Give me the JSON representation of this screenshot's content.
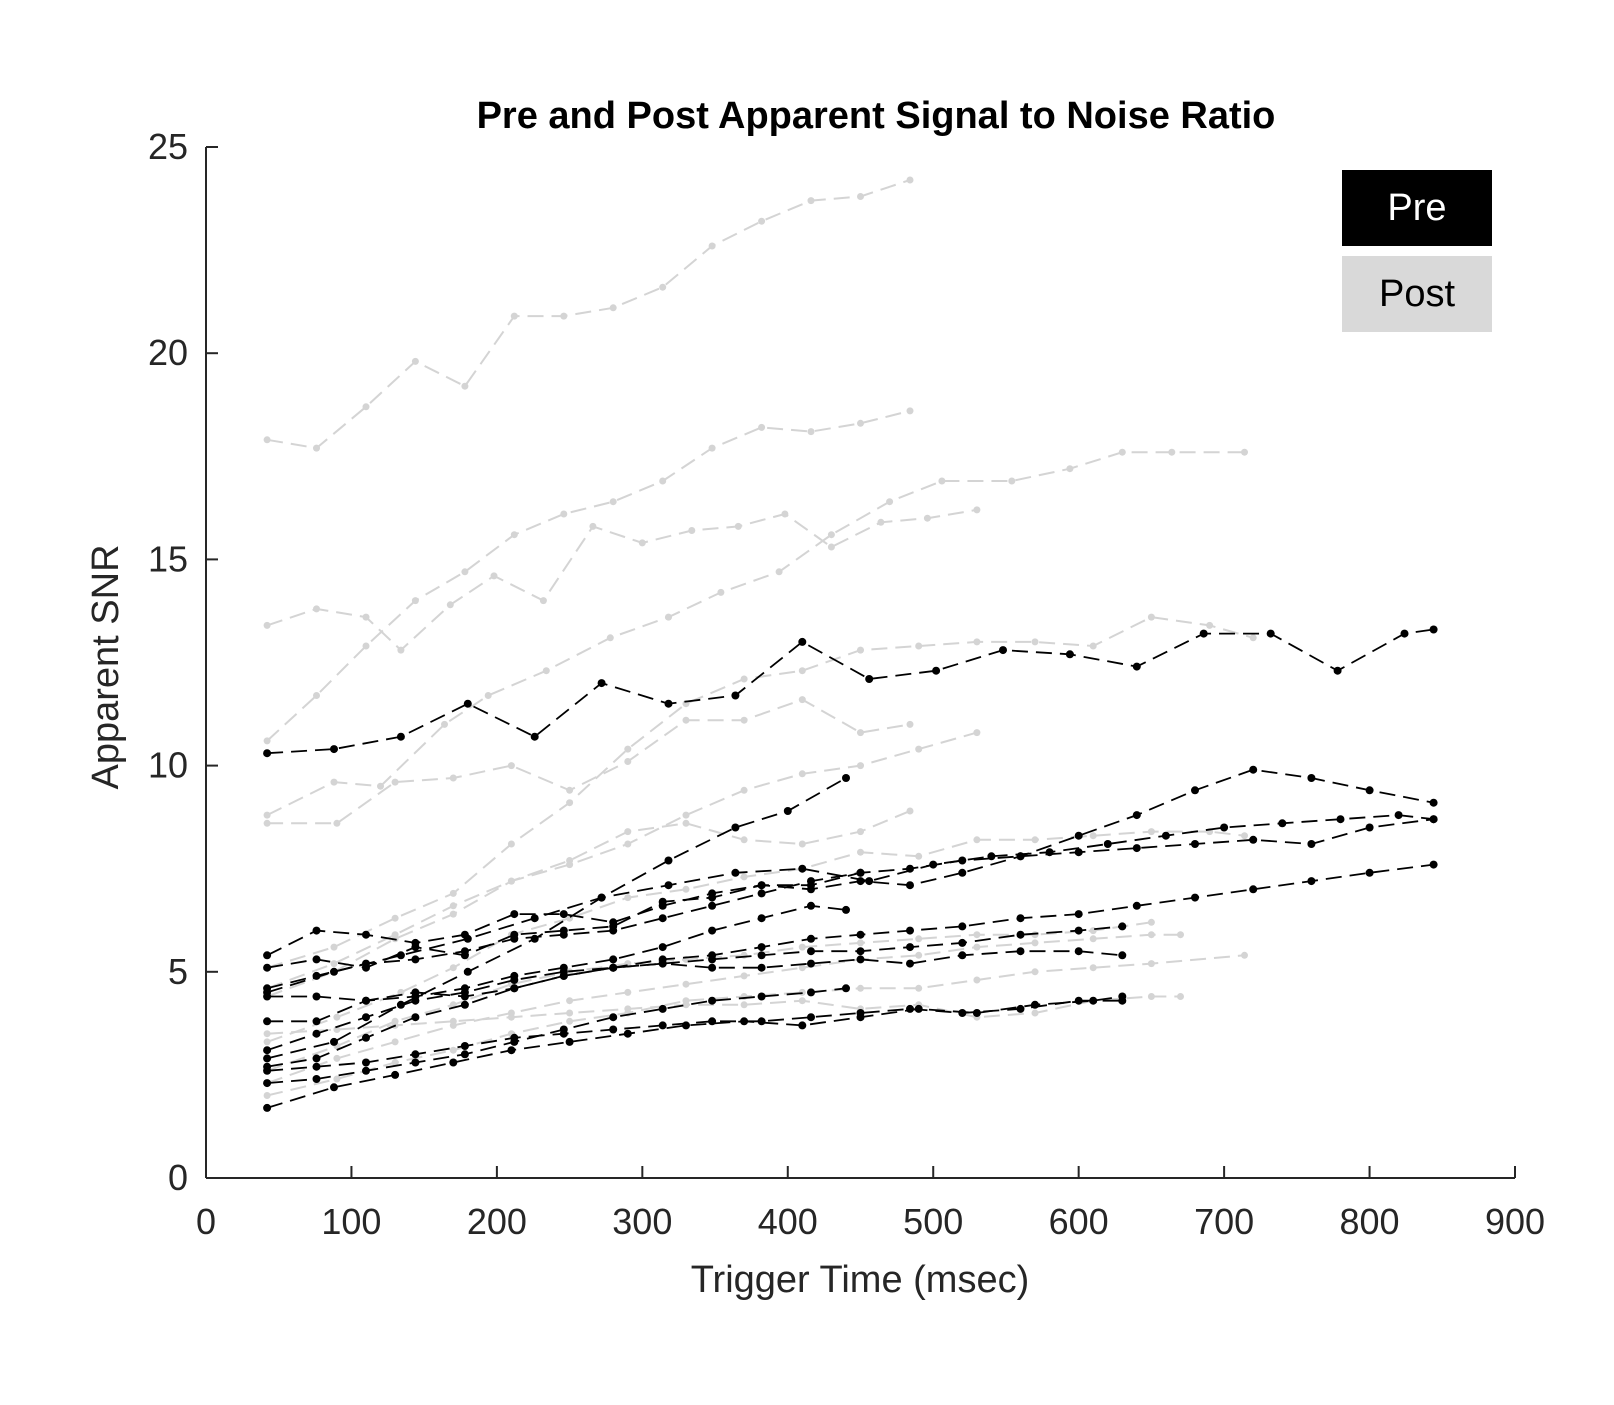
{
  "chart_data": {
    "type": "line",
    "title": "Pre and Post Apparent Signal to Noise Ratio",
    "xlabel": "Trigger Time (msec)",
    "ylabel": "Apparent SNR",
    "xlim": [
      0,
      900
    ],
    "ylim": [
      0,
      25
    ],
    "xticks": [
      0,
      100,
      200,
      300,
      400,
      500,
      600,
      700,
      800,
      900
    ],
    "yticks": [
      0,
      5,
      10,
      15,
      20,
      25
    ],
    "grid": false,
    "legend_position": "top-right",
    "legend": [
      {
        "label": "Pre",
        "color": "#000000",
        "text_color": "#ffffff"
      },
      {
        "label": "Post",
        "color": "#d9d9d9",
        "text_color": "#000000"
      }
    ],
    "colors": {
      "pre": "#000000",
      "post": "#d4d4d4"
    },
    "series": [
      {
        "name": "Post",
        "group": "post",
        "x": [
          42,
          76,
          110,
          144,
          178,
          212,
          246,
          280,
          314,
          348,
          382,
          416,
          450,
          484
        ],
        "y": [
          17.9,
          17.7,
          18.7,
          19.8,
          19.2,
          20.9,
          20.9,
          21.1,
          21.6,
          22.6,
          23.2,
          23.7,
          23.8,
          24.2
        ]
      },
      {
        "name": "Post",
        "group": "post",
        "x": [
          42,
          76,
          110,
          144,
          178,
          212,
          246,
          280,
          314,
          348,
          382,
          416,
          450,
          484
        ],
        "y": [
          10.6,
          11.7,
          12.9,
          14.0,
          14.7,
          15.6,
          16.1,
          16.4,
          16.9,
          17.7,
          18.2,
          18.1,
          18.3,
          18.6
        ]
      },
      {
        "name": "Post",
        "group": "post",
        "x": [
          42,
          76,
          110,
          134,
          168,
          198,
          232,
          266,
          300,
          334,
          366,
          398,
          430,
          464,
          496,
          530
        ],
        "y": [
          13.4,
          13.8,
          13.6,
          12.8,
          13.9,
          14.6,
          14.0,
          15.8,
          15.4,
          15.7,
          15.8,
          16.1,
          15.3,
          15.9,
          16.0,
          16.2
        ]
      },
      {
        "name": "Post",
        "group": "post",
        "x": [
          42,
          88,
          120,
          164,
          194,
          234,
          278,
          318,
          354,
          394,
          430,
          470,
          506,
          554,
          594,
          630,
          664,
          714
        ],
        "y": [
          8.8,
          9.6,
          9.5,
          11.0,
          11.7,
          12.3,
          13.1,
          13.6,
          14.2,
          14.7,
          15.6,
          16.4,
          16.9,
          16.9,
          17.2,
          17.6,
          17.6,
          17.6
        ]
      },
      {
        "name": "Post",
        "group": "post",
        "x": [
          42,
          88,
          130,
          170,
          210,
          250,
          290,
          330,
          370,
          410,
          450,
          490,
          530,
          570,
          610,
          650,
          690,
          720
        ],
        "y": [
          5.1,
          5.6,
          6.3,
          6.9,
          8.1,
          9.1,
          10.4,
          11.5,
          12.1,
          12.3,
          12.8,
          12.9,
          13.0,
          13.0,
          12.9,
          13.6,
          13.4,
          13.1
        ]
      },
      {
        "name": "Post",
        "group": "post",
        "x": [
          42,
          90,
          130,
          170,
          210,
          250,
          290,
          330,
          370,
          410,
          450,
          484
        ],
        "y": [
          8.6,
          8.6,
          9.6,
          9.7,
          10.0,
          9.4,
          10.1,
          11.1,
          11.1,
          11.6,
          10.8,
          11.0
        ]
      },
      {
        "name": "Post",
        "group": "post",
        "x": [
          42,
          88,
          130,
          170,
          210,
          250,
          290,
          330,
          370,
          410,
          450,
          490,
          530
        ],
        "y": [
          4.6,
          5.2,
          5.9,
          6.6,
          7.2,
          7.6,
          8.1,
          8.8,
          9.4,
          9.8,
          10.0,
          10.4,
          10.8
        ]
      },
      {
        "name": "Post",
        "group": "post",
        "x": [
          42,
          88,
          130,
          170,
          210,
          250,
          290,
          330,
          370,
          410,
          450,
          484
        ],
        "y": [
          4.4,
          5.0,
          5.8,
          6.4,
          7.2,
          7.7,
          8.4,
          8.6,
          8.2,
          8.1,
          8.4,
          8.9
        ]
      },
      {
        "name": "Post",
        "group": "post",
        "x": [
          42,
          90,
          134,
          170,
          210,
          250,
          290,
          330,
          370,
          410,
          450,
          490,
          530,
          570,
          610,
          650,
          690,
          714
        ],
        "y": [
          3.3,
          3.9,
          4.5,
          5.1,
          5.9,
          6.3,
          6.8,
          7.0,
          7.3,
          7.5,
          7.9,
          7.8,
          8.2,
          8.2,
          8.3,
          8.4,
          8.4,
          8.3
        ]
      },
      {
        "name": "Post",
        "group": "post",
        "x": [
          42,
          90,
          130,
          170,
          210,
          250,
          290,
          330,
          370,
          410,
          450,
          490,
          530,
          570,
          610,
          650
        ],
        "y": [
          2.6,
          3.2,
          3.8,
          4.2,
          4.7,
          5.0,
          5.2,
          5.3,
          5.4,
          5.6,
          5.7,
          5.8,
          5.9,
          5.9,
          6.0,
          6.2
        ]
      },
      {
        "name": "Post",
        "group": "post",
        "x": [
          42,
          90,
          130,
          170,
          210,
          250,
          290,
          330,
          370,
          410,
          450,
          490,
          530,
          570,
          610,
          650,
          670
        ],
        "y": [
          2.3,
          2.9,
          3.3,
          3.7,
          4.0,
          4.3,
          4.5,
          4.7,
          4.9,
          5.1,
          5.3,
          5.4,
          5.6,
          5.7,
          5.8,
          5.9,
          5.9
        ]
      },
      {
        "name": "Post",
        "group": "post",
        "x": [
          42,
          90,
          130,
          170,
          210,
          250,
          290,
          330,
          370,
          410,
          450,
          490,
          530,
          570,
          610,
          650,
          714
        ],
        "y": [
          2.0,
          2.4,
          2.8,
          3.1,
          3.5,
          3.8,
          4.0,
          4.3,
          4.4,
          4.5,
          4.6,
          4.6,
          4.8,
          5.0,
          5.1,
          5.2,
          5.4
        ]
      },
      {
        "name": "Post",
        "group": "post",
        "x": [
          42,
          90,
          130,
          170,
          210,
          250,
          290,
          330,
          370,
          410,
          450,
          490,
          530,
          570,
          610,
          650,
          670
        ],
        "y": [
          3.5,
          3.6,
          3.7,
          3.8,
          3.9,
          4.0,
          4.1,
          4.2,
          4.2,
          4.3,
          4.1,
          4.2,
          3.9,
          4.0,
          4.3,
          4.4,
          4.4
        ]
      },
      {
        "name": "Pre",
        "group": "pre",
        "x": [
          42,
          88,
          134,
          180,
          226,
          272,
          318,
          364,
          410,
          456,
          502,
          548,
          594,
          640,
          686,
          732,
          778,
          824,
          844
        ],
        "y": [
          10.3,
          10.4,
          10.7,
          11.5,
          10.7,
          12.0,
          11.5,
          11.7,
          13.0,
          12.1,
          12.3,
          12.8,
          12.7,
          12.4,
          13.2,
          13.2,
          12.3,
          13.2,
          13.3
        ]
      },
      {
        "name": "Pre",
        "group": "pre",
        "x": [
          42,
          88,
          134,
          180,
          226,
          272,
          318,
          364,
          400,
          440
        ],
        "y": [
          2.9,
          3.3,
          4.2,
          5.0,
          5.8,
          6.8,
          7.7,
          8.5,
          8.9,
          9.7
        ]
      },
      {
        "name": "Pre",
        "group": "pre",
        "x": [
          42,
          88,
          134,
          180,
          226,
          272,
          318,
          364,
          410,
          456,
          500,
          540,
          580,
          620,
          660,
          700,
          740,
          780,
          820,
          844
        ],
        "y": [
          4.5,
          5.0,
          5.4,
          5.8,
          6.3,
          6.8,
          7.1,
          7.4,
          7.5,
          7.2,
          7.6,
          7.8,
          7.9,
          8.1,
          8.3,
          8.5,
          8.6,
          8.7,
          8.8,
          8.7
        ]
      },
      {
        "name": "Pre",
        "group": "pre",
        "x": [
          42,
          76,
          110,
          144,
          178,
          212,
          246,
          280,
          314,
          348,
          382,
          416,
          450,
          484,
          520,
          560,
          600,
          640,
          680,
          720,
          760,
          800,
          844
        ],
        "y": [
          5.4,
          6.0,
          5.9,
          5.7,
          5.9,
          6.4,
          6.4,
          6.2,
          6.6,
          6.9,
          7.1,
          7.0,
          7.2,
          7.1,
          7.4,
          7.8,
          8.3,
          8.8,
          9.4,
          9.9,
          9.7,
          9.4,
          9.1
        ]
      },
      {
        "name": "Pre",
        "group": "pre",
        "x": [
          42,
          76,
          110,
          144,
          178,
          212,
          246,
          280,
          314,
          348,
          382,
          416,
          450
        ],
        "y": [
          5.1,
          5.3,
          5.1,
          5.6,
          5.4,
          5.9,
          6.0,
          6.1,
          6.7,
          6.8,
          7.1,
          7.1,
          7.4
        ]
      },
      {
        "name": "Pre",
        "group": "pre",
        "x": [
          42,
          76,
          110,
          144,
          178,
          212,
          246,
          280,
          314,
          348,
          382,
          416,
          450,
          484,
          520,
          560,
          600,
          640,
          680,
          720,
          760,
          800,
          844
        ],
        "y": [
          4.6,
          4.9,
          5.2,
          5.3,
          5.5,
          5.8,
          5.9,
          6.0,
          6.3,
          6.6,
          6.9,
          7.2,
          7.4,
          7.5,
          7.7,
          7.8,
          7.9,
          8.0,
          8.1,
          8.2,
          8.1,
          8.5,
          8.7
        ]
      },
      {
        "name": "Pre",
        "group": "pre",
        "x": [
          42,
          76,
          110,
          144,
          178,
          212,
          246,
          280,
          314,
          348,
          382,
          416,
          440
        ],
        "y": [
          3.8,
          3.8,
          4.3,
          4.4,
          4.6,
          4.9,
          5.1,
          5.3,
          5.6,
          6.0,
          6.3,
          6.6,
          6.5
        ]
      },
      {
        "name": "Pre",
        "group": "pre",
        "x": [
          42,
          76,
          110,
          144,
          178,
          212,
          246,
          280,
          314,
          348,
          382,
          416,
          450,
          484,
          520,
          560,
          600,
          640,
          680,
          720,
          760,
          800,
          844
        ],
        "y": [
          2.7,
          2.9,
          3.4,
          3.9,
          4.2,
          4.6,
          4.9,
          5.1,
          5.3,
          5.4,
          5.6,
          5.8,
          5.9,
          6.0,
          6.1,
          6.3,
          6.4,
          6.6,
          6.8,
          7.0,
          7.2,
          7.4,
          7.6
        ]
      },
      {
        "name": "Pre",
        "group": "pre",
        "x": [
          42,
          76,
          110,
          144,
          178,
          212,
          246,
          280,
          314,
          348,
          382,
          416,
          450,
          484,
          520,
          560,
          600,
          630
        ],
        "y": [
          3.1,
          3.5,
          3.9,
          4.3,
          4.5,
          4.8,
          5.0,
          5.1,
          5.2,
          5.3,
          5.4,
          5.5,
          5.5,
          5.6,
          5.7,
          5.9,
          6.0,
          6.1
        ]
      },
      {
        "name": "Pre",
        "group": "pre",
        "x": [
          42,
          76,
          110,
          144,
          178,
          212,
          246,
          280,
          314,
          348,
          382,
          416,
          450,
          484,
          520,
          560,
          600,
          630
        ],
        "y": [
          4.4,
          4.4,
          4.3,
          4.5,
          4.4,
          4.6,
          4.9,
          5.1,
          5.2,
          5.1,
          5.1,
          5.2,
          5.3,
          5.2,
          5.4,
          5.5,
          5.5,
          5.4
        ]
      },
      {
        "name": "Pre",
        "group": "pre",
        "x": [
          42,
          76,
          110,
          144,
          178,
          212,
          246,
          280,
          314,
          348,
          382,
          416,
          440
        ],
        "y": [
          2.3,
          2.4,
          2.6,
          2.8,
          3.0,
          3.3,
          3.6,
          3.9,
          4.1,
          4.3,
          4.4,
          4.5,
          4.6
        ]
      },
      {
        "name": "Pre",
        "group": "pre",
        "x": [
          42,
          88,
          130,
          170,
          210,
          250,
          290,
          330,
          370,
          410,
          450,
          490,
          530,
          570,
          610,
          630
        ],
        "y": [
          1.7,
          2.2,
          2.5,
          2.8,
          3.1,
          3.3,
          3.5,
          3.7,
          3.8,
          3.7,
          3.9,
          4.1,
          4.0,
          4.2,
          4.3,
          4.4
        ]
      },
      {
        "name": "Pre",
        "group": "pre",
        "x": [
          42,
          76,
          110,
          144,
          178,
          212,
          246,
          280,
          314,
          348,
          382,
          416,
          450,
          484,
          520,
          560,
          600,
          630
        ],
        "y": [
          2.6,
          2.7,
          2.8,
          3.0,
          3.2,
          3.4,
          3.5,
          3.6,
          3.7,
          3.8,
          3.8,
          3.9,
          4.0,
          4.1,
          4.0,
          4.1,
          4.3,
          4.3
        ]
      }
    ]
  }
}
